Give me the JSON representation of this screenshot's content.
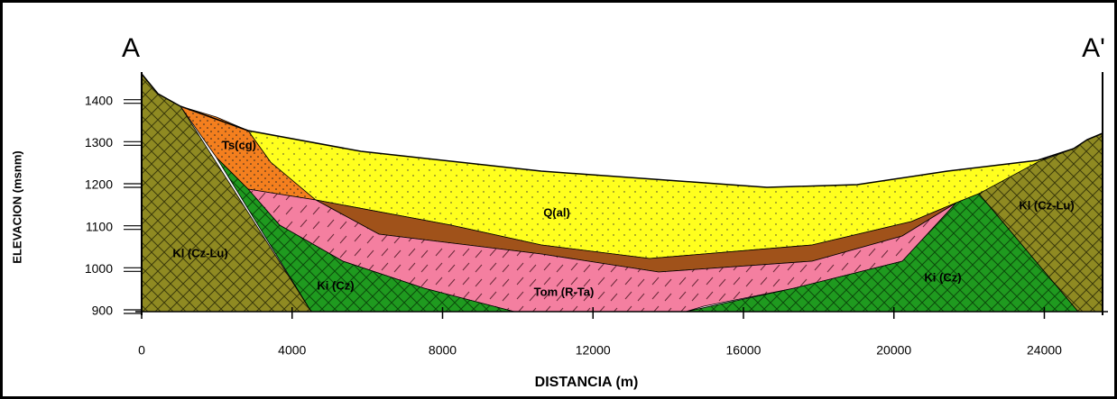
{
  "section": {
    "left_end": "A",
    "right_end": "A'"
  },
  "axes": {
    "x": {
      "title": "DISTANCIA (m)",
      "lim": [
        0,
        25500
      ],
      "ticks": [
        0,
        4000,
        8000,
        12000,
        16000,
        20000,
        24000
      ]
    },
    "y": {
      "title": "ELEVACION (msnm)",
      "lim": [
        900,
        1470
      ],
      "ticks": [
        900,
        1000,
        1100,
        1200,
        1300,
        1400
      ]
    }
  },
  "units": [
    "Ts(cg)",
    "Q(al)",
    "Kl (Cz-Lu)",
    "Ki (Cz)",
    "Tom (R-Ta)",
    "Ki (Cz)",
    "Kl (Cz-Lu)"
  ]
}
